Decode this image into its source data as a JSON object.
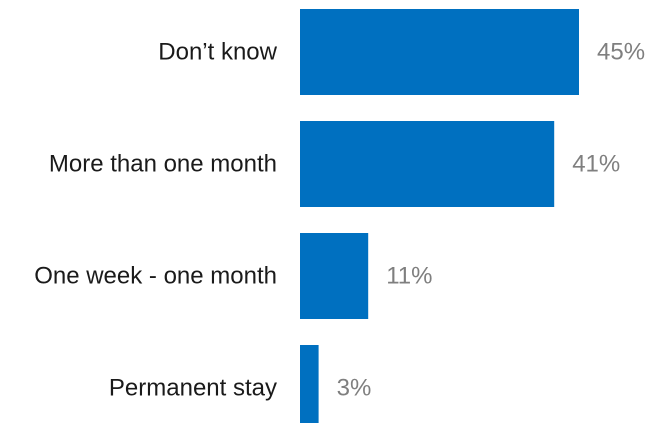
{
  "chart_data": {
    "type": "bar",
    "orientation": "horizontal",
    "categories": [
      "Don’t know",
      "More than one month",
      "One week - one month",
      "Permanent stay"
    ],
    "values": [
      45,
      41,
      11,
      3
    ],
    "value_labels": [
      "45%",
      "41%",
      "11%",
      "3%"
    ],
    "unit": "%",
    "xlim": [
      0,
      50
    ],
    "grid": false,
    "legend": "none",
    "bar_color": "#0070c0",
    "value_label_color": "#7f7f7f",
    "category_label_color": "#1a1a1a"
  }
}
